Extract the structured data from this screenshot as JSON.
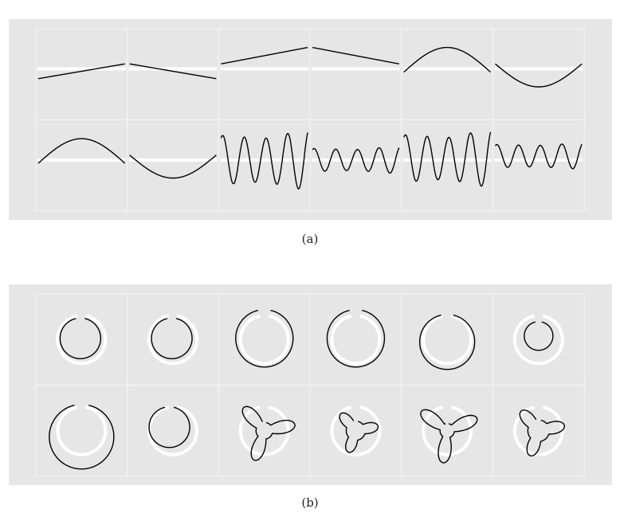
{
  "captions": {
    "a": "(a)",
    "b": "(b)"
  },
  "style": {
    "panel_bg": "#e6e6e6",
    "grid_color": "#f7f7f7",
    "reference_color": "#ffffff",
    "curve_color": "#000000"
  },
  "panel_a": {
    "rows": [
      [
        {
          "kind": "line",
          "start": -0.3,
          "end": 0.15
        },
        {
          "kind": "line",
          "start": 0.15,
          "end": -0.3
        },
        {
          "kind": "line",
          "start": 0.15,
          "end": 0.65
        },
        {
          "kind": "line",
          "start": 0.65,
          "end": 0.15
        },
        {
          "kind": "sine",
          "amp": 0.75,
          "cycles": 0.5,
          "offset": -0.1
        },
        {
          "kind": "sine",
          "amp": -0.7,
          "cycles": 0.5,
          "offset": 0.15
        }
      ],
      [
        {
          "kind": "sine",
          "amp": 0.75,
          "cycles": 0.5,
          "offset": -0.1
        },
        {
          "kind": "sine",
          "amp": -0.7,
          "cycles": 0.5,
          "offset": 0.15
        },
        {
          "kind": "osc",
          "amp": 0.75,
          "cycles": 4,
          "offset": 0.0,
          "growth": 0.25
        },
        {
          "kind": "osc",
          "amp": 0.35,
          "cycles": 4,
          "offset": 0.0,
          "growth": 0.2
        },
        {
          "kind": "osc",
          "amp": 0.72,
          "cycles": 4,
          "offset": 0.05,
          "growth": 0.25
        },
        {
          "kind": "osc",
          "amp": 0.35,
          "cycles": 4,
          "offset": 0.12,
          "growth": 0.15
        }
      ]
    ]
  },
  "panel_b": {
    "rows": [
      [
        {
          "kind": "circle",
          "r": 0.85,
          "dx": -0.05,
          "dy": -0.05
        },
        {
          "kind": "circle",
          "r": 0.85,
          "dx": -0.05,
          "dy": -0.05
        },
        {
          "kind": "circle",
          "r": 1.2,
          "dx": 0.0,
          "dy": -0.05
        },
        {
          "kind": "circle",
          "r": 1.2,
          "dx": 0.0,
          "dy": -0.05
        },
        {
          "kind": "circle",
          "r": 1.15,
          "dx": 0.0,
          "dy": 0.1
        },
        {
          "kind": "circle",
          "r": 0.6,
          "dx": 0.0,
          "dy": -0.15
        }
      ],
      [
        {
          "kind": "circle",
          "r": 1.35,
          "dx": 0.0,
          "dy": 0.25
        },
        {
          "kind": "circle",
          "r": 0.85,
          "dx": -0.15,
          "dy": -0.15
        },
        {
          "kind": "trefoil",
          "base": 0.35,
          "petal": 0.95,
          "rot": 0.2
        },
        {
          "kind": "trefoil",
          "base": 0.4,
          "petal": 0.55,
          "rot": 0.2
        },
        {
          "kind": "trefoil",
          "base": 0.3,
          "petal": 1.05,
          "rot": 0.4
        },
        {
          "kind": "trefoil",
          "base": 0.45,
          "petal": 0.65,
          "rot": 0.2
        }
      ]
    ]
  }
}
